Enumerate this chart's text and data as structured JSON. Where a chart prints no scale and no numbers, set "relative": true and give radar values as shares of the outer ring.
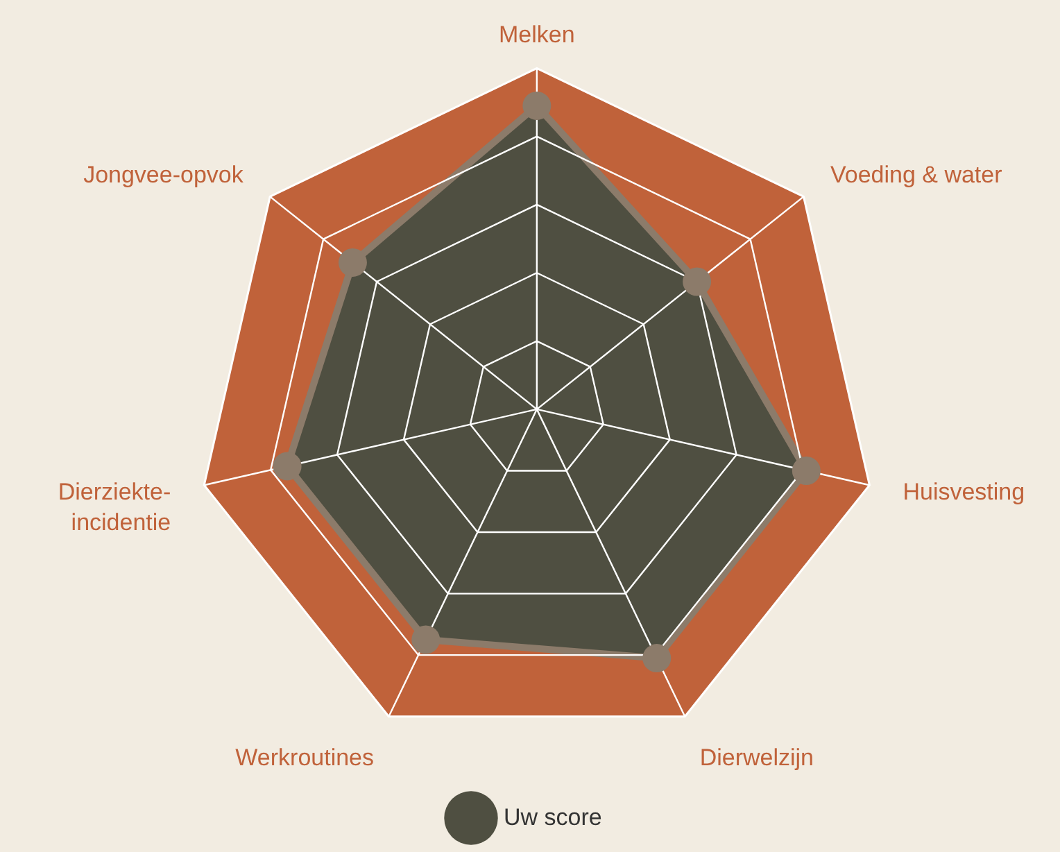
{
  "chart_data": {
    "type": "radar",
    "relative": true,
    "categories": [
      "Melken",
      "Voeding & water",
      "Huisvesting",
      "Dierwelzijn",
      "Werkroutines",
      "Dierziekte-incidentie",
      "Jongvee-opvok"
    ],
    "series": [
      {
        "name": "Uw score",
        "color": "#4f4f41",
        "values": [
          0.89,
          0.6,
          0.81,
          0.81,
          0.75,
          0.75,
          0.69
        ]
      }
    ],
    "grid": true,
    "legend": "bottom",
    "marker": "circle"
  }
}
